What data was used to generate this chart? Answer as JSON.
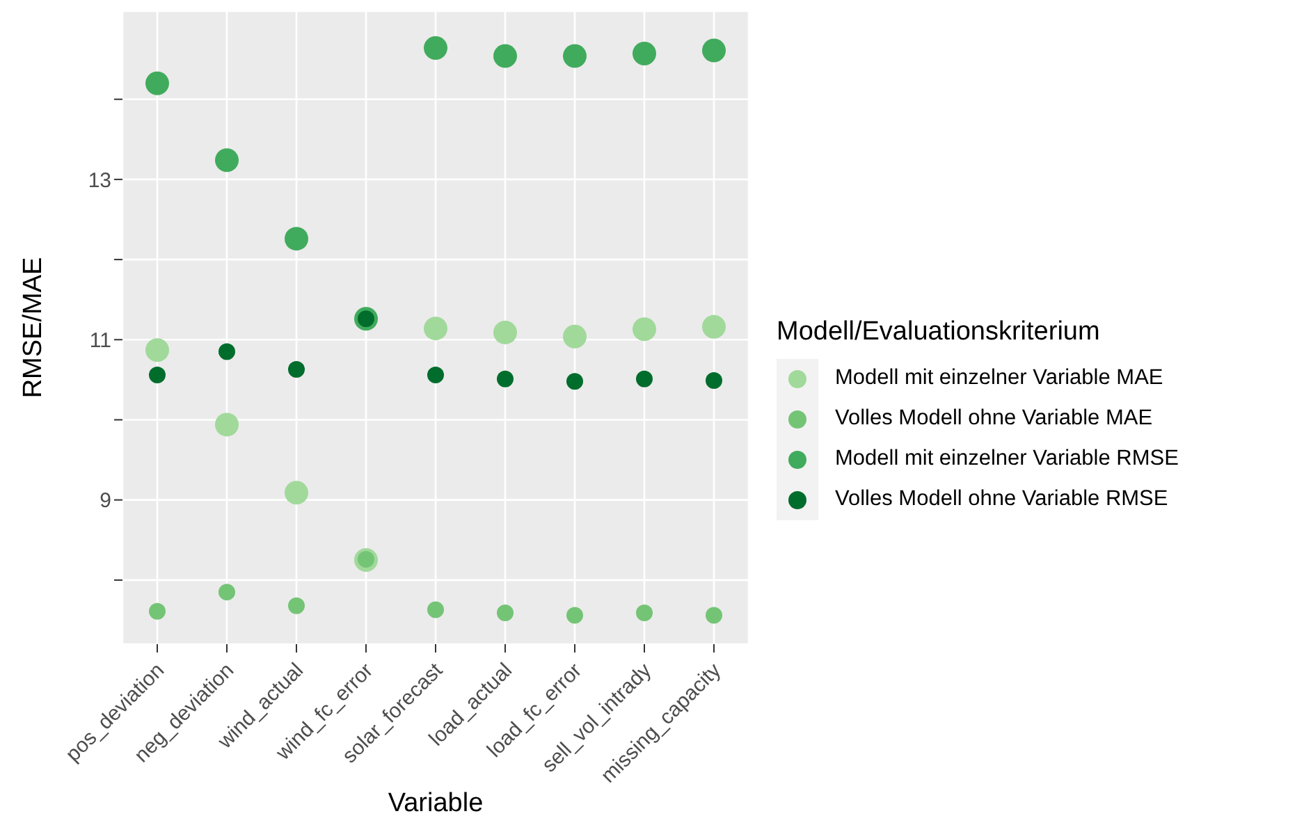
{
  "chart_data": {
    "type": "scatter",
    "xlabel": "Variable",
    "ylabel": "RMSE/MAE",
    "legend_title": "Modell/Evaluationskriterium",
    "categories": [
      "pos_deviation",
      "neg_deviation",
      "wind_actual",
      "wind_fc_error",
      "solar_forecast",
      "load_actual",
      "load_fc_error",
      "sell_vol_intrady",
      "missing_capacity"
    ],
    "series": [
      {
        "name": "Modell mit einzelner Variable MAE",
        "color": "#a1d99b",
        "values": [
          10.87,
          9.94,
          9.09,
          8.25,
          11.14,
          11.09,
          11.04,
          11.13,
          11.16
        ]
      },
      {
        "name": "Volles Modell ohne Variable MAE",
        "color": "#74c476",
        "values": [
          7.61,
          7.85,
          7.68,
          8.26,
          7.63,
          7.59,
          7.56,
          7.59,
          7.56
        ]
      },
      {
        "name": "Modell mit einzelner Variable RMSE",
        "color": "#41ab5d",
        "values": [
          14.2,
          13.24,
          12.26,
          11.26,
          14.64,
          14.54,
          14.54,
          14.57,
          14.61
        ]
      },
      {
        "name": "Volles Modell ohne Variable RMSE",
        "color": "#006d2c",
        "values": [
          10.56,
          10.85,
          10.63,
          11.26,
          10.56,
          10.51,
          10.48,
          10.51,
          10.49
        ]
      }
    ],
    "ylim": [
      7.2,
      15.1
    ],
    "yticks": [
      {
        "value": 8,
        "label": null
      },
      9,
      {
        "value": 10,
        "label": null
      },
      11,
      {
        "value": 12,
        "label": null
      },
      13,
      {
        "value": 14,
        "label": null
      }
    ],
    "grid": true,
    "legend": "right",
    "marker": "circle"
  }
}
